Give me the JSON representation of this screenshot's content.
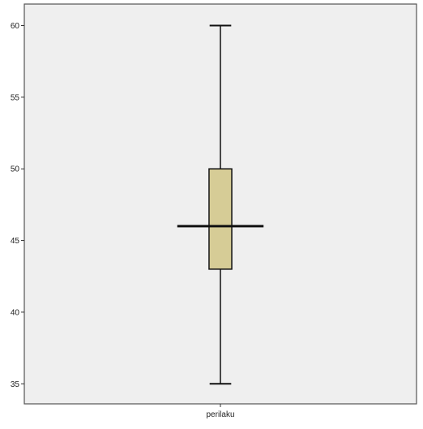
{
  "chart_data": {
    "type": "boxplot",
    "title": "",
    "xlabel": "",
    "ylabel": "",
    "categories": [
      "perilaku"
    ],
    "boxes": [
      {
        "category": "perilaku",
        "min": 35,
        "q1": 43,
        "median": 46,
        "q3": 50,
        "max": 60
      }
    ],
    "ylim": [
      33.6,
      61.5
    ],
    "yticks": [
      35,
      40,
      45,
      50,
      55,
      60
    ],
    "grid": false,
    "legend": "none",
    "colors": {
      "plot_background": "#efefef",
      "box_fill": "#d6cc96",
      "stroke": "#111111"
    }
  }
}
